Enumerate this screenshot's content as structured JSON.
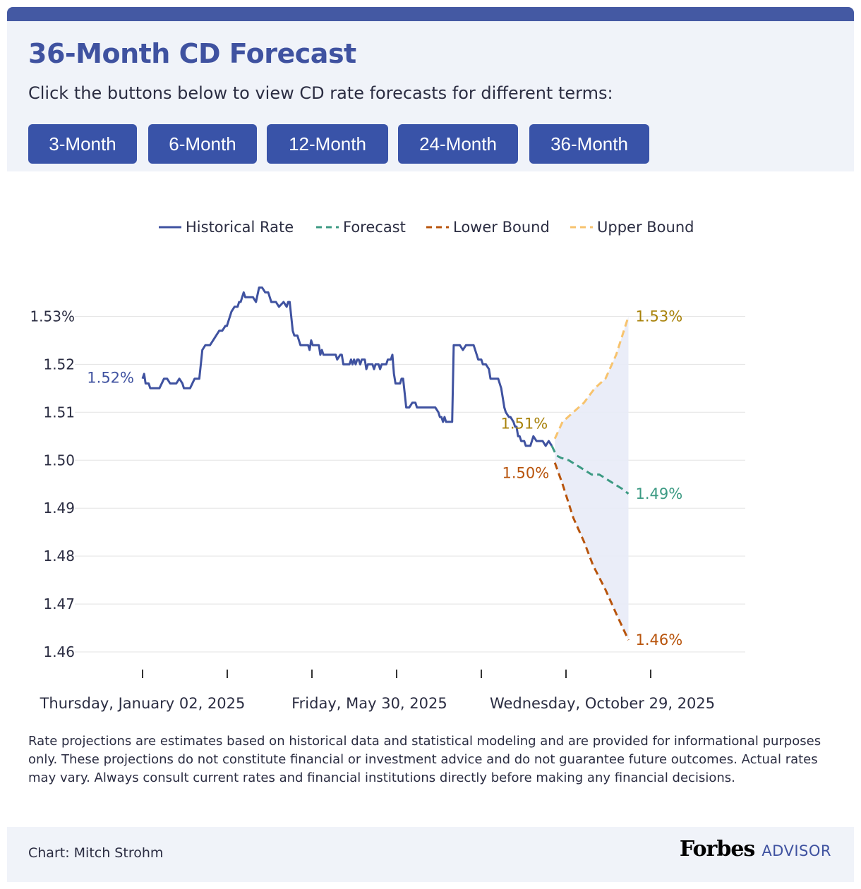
{
  "header": {
    "title": "36-Month CD Forecast",
    "subtitle": "Click the buttons below to view CD rate forecasts for different terms:",
    "buttons": [
      "3-Month",
      "6-Month",
      "12-Month",
      "24-Month",
      "36-Month"
    ]
  },
  "colors": {
    "accent": "#3f52a0",
    "button": "#3953a8",
    "historical": "#3f52a0",
    "forecast": "#3c9a83",
    "lower_bound": "#b8540c",
    "upper_bound": "#f7c36e",
    "band": "#e8ebf7"
  },
  "chart_data": {
    "type": "line",
    "legend": [
      "Historical Rate",
      "Forecast",
      "Lower Bound",
      "Upper Bound"
    ],
    "legend_position": "top",
    "y_ticks": [
      "1.53%",
      "1.52",
      "1.51",
      "1.50",
      "1.49",
      "1.48",
      "1.47",
      "1.46"
    ],
    "y_tick_values": [
      1.53,
      1.52,
      1.51,
      1.5,
      1.49,
      1.48,
      1.47,
      1.46
    ],
    "ylim": [
      1.4583,
      1.5363
    ],
    "x_tick_labels": [
      "Thursday, January 02, 2025",
      "Friday, May 30, 2025",
      "Wednesday, October 29, 2025"
    ],
    "x_tick_dates": [
      "2025-01-02",
      "2025-05-30",
      "2025-10-29"
    ],
    "xlim": [
      "2025-01-02",
      "2026-01-21"
    ],
    "grid": true,
    "series": [
      {
        "name": "Historical Rate",
        "style": "solid",
        "points": [
          [
            "2025-01-02",
            1.517
          ],
          [
            "2025-01-03",
            1.518
          ],
          [
            "2025-01-04",
            1.516
          ],
          [
            "2025-01-06",
            1.516
          ],
          [
            "2025-01-07",
            1.515
          ],
          [
            "2025-01-13",
            1.515
          ],
          [
            "2025-01-16",
            1.517
          ],
          [
            "2025-01-18",
            1.517
          ],
          [
            "2025-01-20",
            1.516
          ],
          [
            "2025-01-24",
            1.516
          ],
          [
            "2025-01-26",
            1.517
          ],
          [
            "2025-01-28",
            1.516
          ],
          [
            "2025-01-29",
            1.515
          ],
          [
            "2025-02-02",
            1.515
          ],
          [
            "2025-02-05",
            1.517
          ],
          [
            "2025-02-08",
            1.517
          ],
          [
            "2025-02-10",
            1.523
          ],
          [
            "2025-02-12",
            1.524
          ],
          [
            "2025-02-15",
            1.524
          ],
          [
            "2025-02-19",
            1.526
          ],
          [
            "2025-02-21",
            1.527
          ],
          [
            "2025-02-23",
            1.527
          ],
          [
            "2025-02-25",
            1.528
          ],
          [
            "2025-02-26",
            1.528
          ],
          [
            "2025-02-28",
            1.53
          ],
          [
            "2025-03-01",
            1.531
          ],
          [
            "2025-03-03",
            1.532
          ],
          [
            "2025-03-05",
            1.532
          ],
          [
            "2025-03-06",
            1.533
          ],
          [
            "2025-03-07",
            1.533
          ],
          [
            "2025-03-09",
            1.535
          ],
          [
            "2025-03-10",
            1.534
          ],
          [
            "2025-03-15",
            1.534
          ],
          [
            "2025-03-17",
            1.533
          ],
          [
            "2025-03-19",
            1.536
          ],
          [
            "2025-03-21",
            1.536
          ],
          [
            "2025-03-23",
            1.535
          ],
          [
            "2025-03-25",
            1.535
          ],
          [
            "2025-03-27",
            1.533
          ],
          [
            "2025-03-30",
            1.533
          ],
          [
            "2025-04-01",
            1.532
          ],
          [
            "2025-04-04",
            1.533
          ],
          [
            "2025-04-06",
            1.532
          ],
          [
            "2025-04-07",
            1.533
          ],
          [
            "2025-04-08",
            1.533
          ],
          [
            "2025-04-10",
            1.527
          ],
          [
            "2025-04-11",
            1.526
          ],
          [
            "2025-04-13",
            1.526
          ],
          [
            "2025-04-15",
            1.524
          ],
          [
            "2025-04-20",
            1.524
          ],
          [
            "2025-04-21",
            1.523
          ],
          [
            "2025-04-22",
            1.525
          ],
          [
            "2025-04-23",
            1.524
          ],
          [
            "2025-04-27",
            1.524
          ],
          [
            "2025-04-28",
            1.522
          ],
          [
            "2025-04-29",
            1.523
          ],
          [
            "2025-04-30",
            1.522
          ],
          [
            "2025-05-08",
            1.522
          ],
          [
            "2025-05-09",
            1.521
          ],
          [
            "2025-05-11",
            1.522
          ],
          [
            "2025-05-12",
            1.522
          ],
          [
            "2025-05-13",
            1.52
          ],
          [
            "2025-05-17",
            1.52
          ],
          [
            "2025-05-18",
            1.521
          ],
          [
            "2025-05-19",
            1.52
          ],
          [
            "2025-05-20",
            1.521
          ],
          [
            "2025-05-21",
            1.52
          ],
          [
            "2025-05-22",
            1.521
          ],
          [
            "2025-05-23",
            1.521
          ],
          [
            "2025-05-24",
            1.52
          ],
          [
            "2025-05-25",
            1.521
          ],
          [
            "2025-05-27",
            1.521
          ],
          [
            "2025-05-28",
            1.519
          ],
          [
            "2025-05-29",
            1.52
          ],
          [
            "2025-05-31",
            1.52
          ],
          [
            "2025-06-01",
            1.52
          ],
          [
            "2025-06-02",
            1.519
          ],
          [
            "2025-06-03",
            1.52
          ],
          [
            "2025-06-05",
            1.52
          ],
          [
            "2025-06-06",
            1.519
          ],
          [
            "2025-06-07",
            1.52
          ],
          [
            "2025-06-10",
            1.52
          ],
          [
            "2025-06-11",
            1.521
          ],
          [
            "2025-06-13",
            1.521
          ],
          [
            "2025-06-14",
            1.522
          ],
          [
            "2025-06-15",
            1.518
          ],
          [
            "2025-06-16",
            1.516
          ],
          [
            "2025-06-19",
            1.516
          ],
          [
            "2025-06-20",
            1.517
          ],
          [
            "2025-06-21",
            1.517
          ],
          [
            "2025-06-23",
            1.511
          ],
          [
            "2025-06-25",
            1.511
          ],
          [
            "2025-06-27",
            1.512
          ],
          [
            "2025-06-29",
            1.512
          ],
          [
            "2025-06-30",
            1.511
          ],
          [
            "2025-07-12",
            1.511
          ],
          [
            "2025-07-14",
            1.51
          ],
          [
            "2025-07-15",
            1.509
          ],
          [
            "2025-07-16",
            1.509
          ],
          [
            "2025-07-17",
            1.508
          ],
          [
            "2025-07-18",
            1.509
          ],
          [
            "2025-07-19",
            1.508
          ],
          [
            "2025-07-23",
            1.508
          ],
          [
            "2025-07-24",
            1.524
          ],
          [
            "2025-07-28",
            1.524
          ],
          [
            "2025-07-30",
            1.523
          ],
          [
            "2025-08-01",
            1.524
          ],
          [
            "2025-08-06",
            1.524
          ],
          [
            "2025-08-08",
            1.522
          ],
          [
            "2025-08-09",
            1.521
          ],
          [
            "2025-08-11",
            1.521
          ],
          [
            "2025-08-12",
            1.52
          ],
          [
            "2025-08-14",
            1.52
          ],
          [
            "2025-08-16",
            1.519
          ],
          [
            "2025-08-17",
            1.517
          ],
          [
            "2025-08-22",
            1.517
          ],
          [
            "2025-08-24",
            1.515
          ],
          [
            "2025-08-26",
            1.511
          ],
          [
            "2025-08-27",
            1.51
          ],
          [
            "2025-08-29",
            1.509
          ],
          [
            "2025-08-30",
            1.509
          ],
          [
            "2025-09-01",
            1.508
          ],
          [
            "2025-09-02",
            1.507
          ],
          [
            "2025-09-03",
            1.507
          ],
          [
            "2025-09-04",
            1.505
          ],
          [
            "2025-09-05",
            1.505
          ],
          [
            "2025-09-06",
            1.504
          ],
          [
            "2025-09-08",
            1.504
          ],
          [
            "2025-09-09",
            1.503
          ],
          [
            "2025-09-12",
            1.503
          ],
          [
            "2025-09-14",
            1.505
          ],
          [
            "2025-09-16",
            1.504
          ],
          [
            "2025-09-20",
            1.504
          ],
          [
            "2025-09-22",
            1.503
          ],
          [
            "2025-09-24",
            1.504
          ],
          [
            "2025-09-26",
            1.503
          ]
        ]
      },
      {
        "name": "Forecast",
        "style": "dashed",
        "points": [
          [
            "2025-09-26",
            1.503
          ],
          [
            "2025-09-29",
            1.501
          ],
          [
            "2025-10-02",
            1.5005
          ],
          [
            "2025-10-07",
            1.5
          ],
          [
            "2025-10-12",
            1.499
          ],
          [
            "2025-10-17",
            1.498
          ],
          [
            "2025-10-22",
            1.497
          ],
          [
            "2025-10-27",
            1.497
          ],
          [
            "2025-11-01",
            1.496
          ],
          [
            "2025-11-06",
            1.495
          ],
          [
            "2025-11-11",
            1.494
          ],
          [
            "2025-11-15",
            1.493
          ]
        ]
      },
      {
        "name": "Lower Bound",
        "style": "dashed",
        "points": [
          [
            "2025-09-28",
            1.4995
          ],
          [
            "2025-10-03",
            1.495
          ],
          [
            "2025-10-10",
            1.488
          ],
          [
            "2025-10-17",
            1.483
          ],
          [
            "2025-10-23",
            1.478
          ],
          [
            "2025-10-31",
            1.473
          ],
          [
            "2025-11-07",
            1.468
          ],
          [
            "2025-11-15",
            1.4625
          ]
        ]
      },
      {
        "name": "Upper Bound",
        "style": "dashed",
        "points": [
          [
            "2025-09-28",
            1.5045
          ],
          [
            "2025-10-03",
            1.508
          ],
          [
            "2025-10-10",
            1.51
          ],
          [
            "2025-10-17",
            1.512
          ],
          [
            "2025-10-24",
            1.515
          ],
          [
            "2025-10-31",
            1.517
          ],
          [
            "2025-11-07",
            1.522
          ],
          [
            "2025-11-15",
            1.53
          ]
        ]
      }
    ],
    "annotations": [
      {
        "text": "1.52%",
        "series": "Historical Rate"
      },
      {
        "text": "1.51%",
        "series": "Upper Bound"
      },
      {
        "text": "1.50%",
        "series": "Lower Bound"
      },
      {
        "text": "1.53%",
        "series": "Upper Bound"
      },
      {
        "text": "1.49%",
        "series": "Forecast"
      },
      {
        "text": "1.46%",
        "series": "Lower Bound"
      }
    ]
  },
  "disclaimer": "Rate projections are estimates based on historical data and statistical modeling and are provided for informational purposes only. These projections do not constitute financial or investment advice and do not guarantee future outcomes. Actual rates may vary. Always consult current rates and financial institutions directly before making any financial decisions.",
  "footer": {
    "credit": "Chart: Mitch Strohm",
    "brand_name": "Forbes",
    "brand_suffix": "ADVISOR"
  }
}
